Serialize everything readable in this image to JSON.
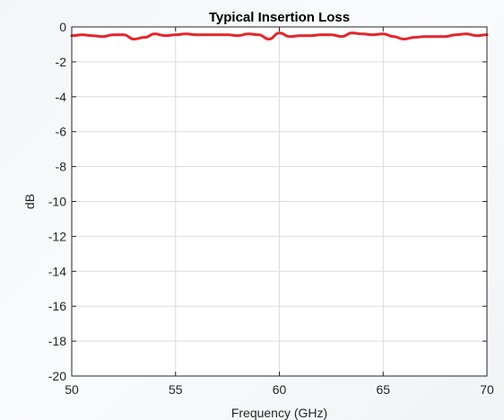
{
  "chart_data": {
    "type": "line",
    "title": "Typical Insertion Loss",
    "xlabel": "Frequency (GHz)",
    "ylabel": "dB",
    "xlim": [
      50,
      70
    ],
    "ylim": [
      -20,
      0
    ],
    "x_ticks": [
      50,
      55,
      60,
      65,
      70
    ],
    "y_ticks": [
      0,
      -2,
      -4,
      -6,
      -8,
      -10,
      -12,
      -14,
      -16,
      -18,
      -20
    ],
    "grid": true,
    "legend": "none",
    "colors": {
      "line": "#e3262b",
      "grid": "#dcdcdc",
      "axis": "#262626",
      "plot_bg": "#ffffff"
    },
    "series": [
      {
        "x": [
          50,
          50.5,
          51,
          51.5,
          52,
          52.5,
          53,
          53.5,
          54,
          54.5,
          55,
          55.5,
          56,
          56.5,
          57,
          57.5,
          58,
          58.5,
          59,
          59.5,
          60,
          60.5,
          61,
          61.5,
          62,
          62.5,
          63,
          63.5,
          64,
          64.5,
          65,
          65.5,
          66,
          66.5,
          67,
          67.5,
          68,
          68.5,
          69,
          69.5,
          70
        ],
        "values": [
          -0.5,
          -0.45,
          -0.5,
          -0.55,
          -0.45,
          -0.45,
          -0.7,
          -0.6,
          -0.4,
          -0.5,
          -0.45,
          -0.4,
          -0.45,
          -0.45,
          -0.45,
          -0.45,
          -0.5,
          -0.4,
          -0.45,
          -0.7,
          -0.35,
          -0.55,
          -0.5,
          -0.5,
          -0.45,
          -0.45,
          -0.55,
          -0.35,
          -0.4,
          -0.45,
          -0.4,
          -0.55,
          -0.7,
          -0.6,
          -0.55,
          -0.55,
          -0.55,
          -0.45,
          -0.4,
          -0.5,
          -0.45
        ]
      }
    ]
  }
}
